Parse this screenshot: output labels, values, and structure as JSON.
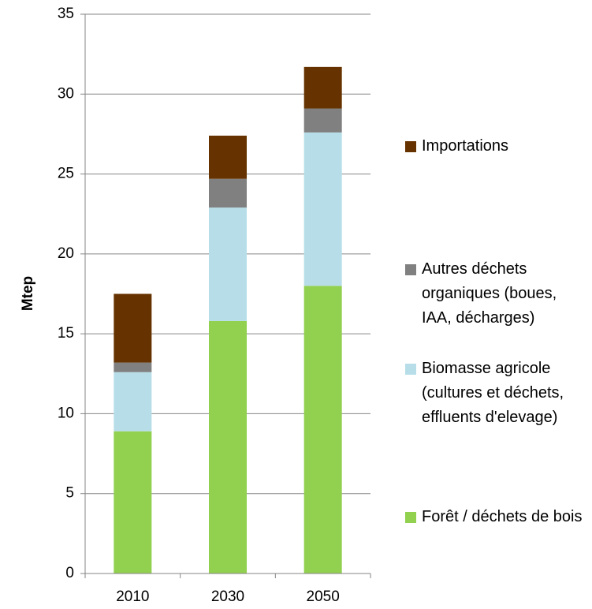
{
  "chart_data": {
    "type": "stacked_bar",
    "y_label": "Mtep",
    "categories": [
      "2010",
      "2030",
      "2050"
    ],
    "series": [
      {
        "name": "Forêt / déchets de bois",
        "color": "#92d050",
        "values": [
          8.9,
          15.8,
          18.0
        ]
      },
      {
        "name": "Biomasse agricole (cultures et déchets, effluents d'elevage)",
        "color": "#b7dee8",
        "values": [
          3.7,
          7.1,
          9.6
        ]
      },
      {
        "name": "Autres déchets organiques (boues, IAA, décharges)",
        "color": "#808080",
        "values": [
          0.6,
          1.8,
          1.5
        ]
      },
      {
        "name": "Importations",
        "color": "#663300",
        "values": [
          4.3,
          2.7,
          2.6
        ]
      }
    ],
    "ylim": [
      0,
      35
    ],
    "yticks": [
      0,
      5,
      10,
      15,
      20,
      25,
      30,
      35
    ],
    "grid": true,
    "legend": "right"
  }
}
